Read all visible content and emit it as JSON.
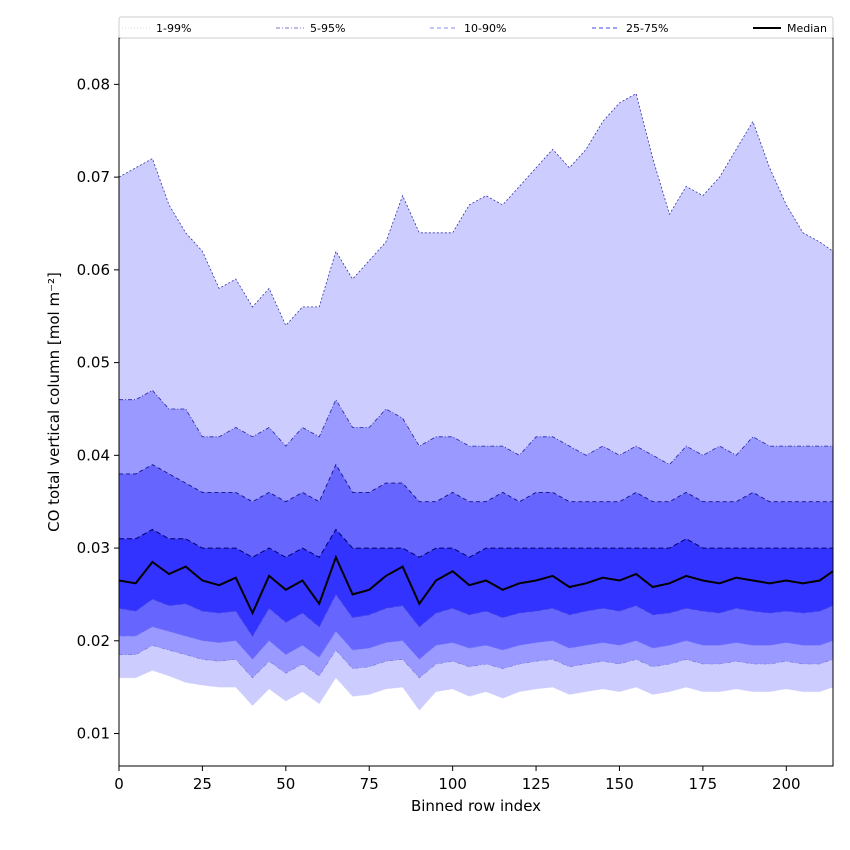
{
  "chart_data": {
    "type": "area",
    "xlabel": "Binned row index",
    "ylabel": "CO total vertical column [mol m⁻²]",
    "xlim": [
      0,
      214
    ],
    "ylim": [
      0.0065,
      0.085
    ],
    "xticks": [
      0,
      25,
      50,
      75,
      100,
      125,
      150,
      175,
      200
    ],
    "yticks": [
      0.01,
      0.02,
      0.03,
      0.04,
      0.05,
      0.06,
      0.07,
      0.08
    ],
    "ytick_labels": [
      "0.01",
      "0.02",
      "0.03",
      "0.04",
      "0.05",
      "0.06",
      "0.07",
      "0.08"
    ],
    "grid": false,
    "legend_position": "top",
    "legend": [
      {
        "label": "1-99%",
        "style": "dotted",
        "color": "#d8d8ee"
      },
      {
        "label": "5-95%",
        "style": "dashdot",
        "color": "#7777cc"
      },
      {
        "label": "10-90%",
        "style": "dashed",
        "color": "#8888ee"
      },
      {
        "label": "25-75%",
        "style": "dashed",
        "color": "#4444dd"
      },
      {
        "label": "Median",
        "style": "solid",
        "color": "#000000"
      }
    ],
    "colors": {
      "band_1_99": "#ccccff",
      "band_5_95": "#9999ff",
      "band_10_90": "#6666ff",
      "band_25_75": "#3333ff",
      "median": "#000000"
    },
    "x_step": 5,
    "x": [
      0,
      5,
      10,
      15,
      20,
      25,
      30,
      35,
      40,
      45,
      50,
      55,
      60,
      65,
      70,
      75,
      80,
      85,
      90,
      95,
      100,
      105,
      110,
      115,
      120,
      125,
      130,
      135,
      140,
      145,
      150,
      155,
      160,
      165,
      170,
      175,
      180,
      185,
      190,
      195,
      200,
      205,
      210,
      214
    ],
    "series": [
      {
        "name": "99%",
        "values": [
          0.07,
          0.071,
          0.072,
          0.067,
          0.064,
          0.062,
          0.058,
          0.059,
          0.056,
          0.058,
          0.054,
          0.056,
          0.056,
          0.062,
          0.059,
          0.061,
          0.063,
          0.068,
          0.064,
          0.064,
          0.064,
          0.067,
          0.068,
          0.067,
          0.069,
          0.071,
          0.073,
          0.071,
          0.073,
          0.076,
          0.078,
          0.079,
          0.072,
          0.066,
          0.069,
          0.068,
          0.07,
          0.073,
          0.076,
          0.071,
          0.067,
          0.064,
          0.063,
          0.062
        ]
      },
      {
        "name": "95%",
        "values": [
          0.046,
          0.046,
          0.047,
          0.045,
          0.045,
          0.042,
          0.042,
          0.043,
          0.042,
          0.043,
          0.041,
          0.043,
          0.042,
          0.046,
          0.043,
          0.043,
          0.045,
          0.044,
          0.041,
          0.042,
          0.042,
          0.041,
          0.041,
          0.041,
          0.04,
          0.042,
          0.042,
          0.041,
          0.04,
          0.041,
          0.04,
          0.041,
          0.04,
          0.039,
          0.041,
          0.04,
          0.041,
          0.04,
          0.042,
          0.041,
          0.041,
          0.041,
          0.041,
          0.041
        ]
      },
      {
        "name": "90%",
        "values": [
          0.038,
          0.038,
          0.039,
          0.038,
          0.037,
          0.036,
          0.036,
          0.036,
          0.035,
          0.036,
          0.035,
          0.036,
          0.035,
          0.039,
          0.036,
          0.036,
          0.037,
          0.037,
          0.035,
          0.035,
          0.036,
          0.035,
          0.035,
          0.036,
          0.035,
          0.036,
          0.036,
          0.035,
          0.035,
          0.035,
          0.035,
          0.036,
          0.035,
          0.035,
          0.036,
          0.035,
          0.035,
          0.035,
          0.036,
          0.035,
          0.035,
          0.035,
          0.035,
          0.035
        ]
      },
      {
        "name": "75%",
        "values": [
          0.031,
          0.031,
          0.032,
          0.031,
          0.031,
          0.03,
          0.03,
          0.03,
          0.029,
          0.03,
          0.029,
          0.03,
          0.029,
          0.032,
          0.03,
          0.03,
          0.03,
          0.03,
          0.029,
          0.03,
          0.03,
          0.029,
          0.03,
          0.03,
          0.03,
          0.03,
          0.03,
          0.03,
          0.03,
          0.03,
          0.03,
          0.03,
          0.03,
          0.03,
          0.031,
          0.03,
          0.03,
          0.03,
          0.03,
          0.03,
          0.03,
          0.03,
          0.03,
          0.03
        ]
      },
      {
        "name": "Median",
        "values": [
          0.0265,
          0.0262,
          0.0285,
          0.0272,
          0.028,
          0.0265,
          0.026,
          0.0268,
          0.023,
          0.027,
          0.0255,
          0.0265,
          0.024,
          0.029,
          0.025,
          0.0255,
          0.027,
          0.028,
          0.024,
          0.0265,
          0.0275,
          0.026,
          0.0265,
          0.0255,
          0.0262,
          0.0265,
          0.027,
          0.0258,
          0.0262,
          0.0268,
          0.0265,
          0.0272,
          0.0258,
          0.0262,
          0.027,
          0.0265,
          0.0262,
          0.0268,
          0.0265,
          0.0262,
          0.0265,
          0.0262,
          0.0265,
          0.0275
        ]
      },
      {
        "name": "25%",
        "values": [
          0.0235,
          0.0232,
          0.0245,
          0.0238,
          0.024,
          0.0232,
          0.023,
          0.0232,
          0.0205,
          0.0235,
          0.022,
          0.023,
          0.0215,
          0.025,
          0.0225,
          0.0228,
          0.0235,
          0.0238,
          0.0215,
          0.023,
          0.0235,
          0.0228,
          0.0232,
          0.0225,
          0.023,
          0.0232,
          0.0235,
          0.0228,
          0.0232,
          0.0235,
          0.0232,
          0.0238,
          0.0228,
          0.023,
          0.0235,
          0.0232,
          0.023,
          0.0235,
          0.0232,
          0.023,
          0.0232,
          0.023,
          0.0232,
          0.0238
        ]
      },
      {
        "name": "10%",
        "values": [
          0.0205,
          0.0205,
          0.0215,
          0.021,
          0.0205,
          0.02,
          0.0198,
          0.02,
          0.018,
          0.02,
          0.0185,
          0.0195,
          0.0182,
          0.021,
          0.019,
          0.0192,
          0.0198,
          0.02,
          0.018,
          0.0195,
          0.0198,
          0.0192,
          0.0195,
          0.019,
          0.0195,
          0.0198,
          0.02,
          0.0192,
          0.0195,
          0.0198,
          0.0195,
          0.02,
          0.0192,
          0.0195,
          0.02,
          0.0195,
          0.0195,
          0.0198,
          0.0195,
          0.0195,
          0.0198,
          0.0195,
          0.0195,
          0.02
        ]
      },
      {
        "name": "5%",
        "values": [
          0.0185,
          0.0185,
          0.0195,
          0.019,
          0.0185,
          0.018,
          0.0178,
          0.018,
          0.016,
          0.0178,
          0.0165,
          0.0175,
          0.0162,
          0.019,
          0.017,
          0.0172,
          0.0178,
          0.018,
          0.016,
          0.0175,
          0.0178,
          0.0172,
          0.0175,
          0.017,
          0.0175,
          0.0178,
          0.018,
          0.0172,
          0.0175,
          0.0178,
          0.0175,
          0.018,
          0.0172,
          0.0175,
          0.018,
          0.0175,
          0.0175,
          0.0178,
          0.0175,
          0.0175,
          0.0178,
          0.0175,
          0.0175,
          0.018
        ]
      },
      {
        "name": "1%",
        "values": [
          0.016,
          0.016,
          0.0168,
          0.0162,
          0.0155,
          0.0152,
          0.015,
          0.015,
          0.013,
          0.0148,
          0.0135,
          0.0145,
          0.0132,
          0.016,
          0.014,
          0.0142,
          0.0148,
          0.015,
          0.0125,
          0.0145,
          0.0148,
          0.014,
          0.0145,
          0.0138,
          0.0145,
          0.0148,
          0.015,
          0.0142,
          0.0145,
          0.0148,
          0.0145,
          0.015,
          0.0142,
          0.0145,
          0.015,
          0.0145,
          0.0145,
          0.0148,
          0.0145,
          0.0145,
          0.0148,
          0.0145,
          0.0145,
          0.015
        ]
      }
    ]
  }
}
